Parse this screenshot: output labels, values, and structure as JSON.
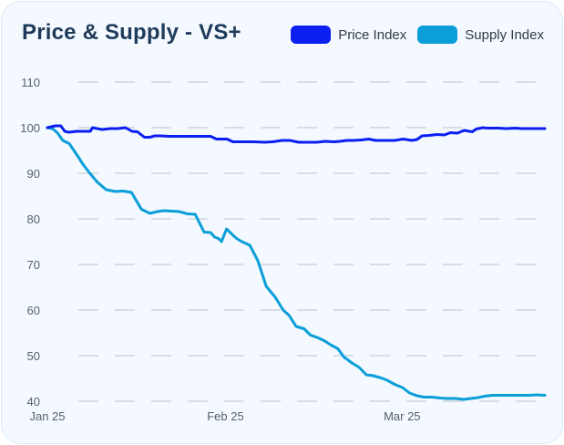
{
  "chart_data": {
    "type": "line",
    "title": "Price & Supply - VS+",
    "xlabel": "",
    "ylabel": "",
    "ylim": [
      40,
      110
    ],
    "yticks": [
      40,
      50,
      60,
      70,
      80,
      90,
      100,
      110
    ],
    "xlim": [
      0,
      100
    ],
    "xticks": [
      {
        "x": 0,
        "label": "Jan 25"
      },
      {
        "x": 35.8,
        "label": "Feb 25"
      },
      {
        "x": 71.3,
        "label": "Mar 25"
      }
    ],
    "grid": true,
    "legend": "top-right",
    "series": [
      {
        "name": "Price Index",
        "color": "#0a1ff0",
        "x": [
          0,
          1.6,
          2.7,
          3.5,
          4.3,
          5.9,
          7.5,
          8.6,
          9.1,
          10.0,
          11.0,
          12.7,
          14.1,
          15.7,
          17.0,
          18.1,
          19.5,
          20.6,
          21.6,
          22.8,
          24.4,
          26.2,
          28.1,
          30.6,
          32.8,
          34.0,
          35.0,
          36.1,
          37.3,
          39.1,
          41.5,
          43.6,
          45.3,
          47.2,
          48.8,
          50.5,
          51.6,
          52.8,
          54.2,
          55.8,
          57.7,
          58.8,
          60.2,
          61.5,
          63.1,
          64.6,
          66.0,
          67.9,
          69.8,
          71.5,
          73.3,
          74.3,
          75.3,
          76.7,
          78.4,
          79.8,
          81.0,
          82.4,
          83.8,
          85.4,
          86.2,
          87.5,
          88.4,
          89.4,
          90.6,
          92.2,
          94.0,
          95.4,
          97.4,
          100
        ],
        "values": [
          100,
          100.4,
          100.4,
          99.2,
          99.0,
          99.2,
          99.2,
          99.2,
          100.0,
          99.8,
          99.6,
          99.8,
          99.8,
          100.0,
          99.2,
          99.1,
          97.9,
          97.9,
          98.2,
          98.2,
          98.1,
          98.1,
          98.1,
          98.1,
          98.1,
          97.5,
          97.5,
          97.5,
          96.9,
          96.9,
          96.9,
          96.8,
          96.9,
          97.2,
          97.2,
          96.8,
          96.8,
          96.8,
          96.8,
          97.0,
          96.9,
          97.0,
          97.2,
          97.2,
          97.3,
          97.5,
          97.2,
          97.2,
          97.2,
          97.5,
          97.2,
          97.4,
          98.2,
          98.3,
          98.5,
          98.4,
          98.9,
          98.8,
          99.4,
          99.1,
          99.7,
          100.0,
          99.9,
          99.9,
          99.9,
          99.8,
          99.9,
          99.8,
          99.8,
          99.8
        ]
      },
      {
        "name": "Supply Index",
        "color": "#0b9ed9",
        "x": [
          0,
          1.0,
          2.0,
          3.1,
          4.4,
          5.9,
          7.2,
          8.6,
          10.0,
          11.8,
          13.6,
          15.2,
          16.9,
          18.9,
          20.6,
          22.1,
          23.4,
          24.9,
          26.5,
          28.1,
          29.7,
          31.5,
          32.8,
          33.6,
          34.4,
          35.0,
          36.0,
          37.6,
          38.3,
          39.1,
          40.7,
          42.3,
          44.0,
          45.8,
          47.4,
          48.6,
          50.0,
          51.6,
          52.9,
          54.2,
          55.6,
          56.9,
          58.4,
          59.6,
          61.2,
          62.7,
          64.1,
          65.5,
          67.1,
          68.3,
          69.8,
          71.4,
          72.8,
          74.3,
          75.7,
          77.3,
          79.0,
          80.5,
          82.1,
          83.7,
          85.1,
          86.6,
          87.9,
          89.4,
          90.9,
          92.2,
          93.8,
          95.2,
          96.7,
          98.4,
          100
        ],
        "values": [
          100,
          99.8,
          98.9,
          97.2,
          96.5,
          94.1,
          91.9,
          89.9,
          88.1,
          86.4,
          86.0,
          86.1,
          85.8,
          82.1,
          81.2,
          81.6,
          81.8,
          81.7,
          81.6,
          81.1,
          81.0,
          77.1,
          77.0,
          76.0,
          75.7,
          75.0,
          77.8,
          76.1,
          75.5,
          75.0,
          74.2,
          70.8,
          65.2,
          62.8,
          60.0,
          58.8,
          56.4,
          55.9,
          54.5,
          54.0,
          53.3,
          52.4,
          51.5,
          49.7,
          48.4,
          47.4,
          45.8,
          45.6,
          45.1,
          44.6,
          43.7,
          43.0,
          41.8,
          41.2,
          40.9,
          40.9,
          40.7,
          40.6,
          40.6,
          40.4,
          40.6,
          40.8,
          41.1,
          41.3,
          41.3,
          41.3,
          41.3,
          41.3,
          41.3,
          41.4,
          41.3
        ]
      }
    ]
  }
}
